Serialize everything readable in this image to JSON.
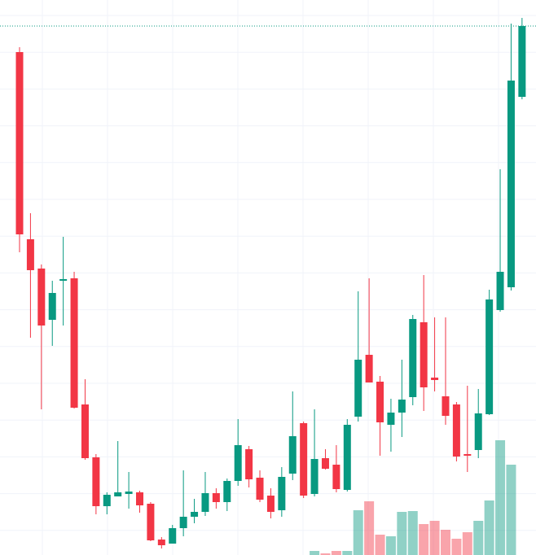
{
  "chart_data": {
    "type": "candlestick",
    "up_color": "#089981",
    "down_color": "#f23645",
    "ylim": [
      0,
      682
    ],
    "y2lim": [
      0,
      682
    ],
    "grid": true,
    "open": [
      618,
      388,
      352,
      289,
      337,
      340,
      185,
      120,
      60,
      72,
      75,
      77,
      63,
      19,
      14,
      33,
      47,
      53,
      76,
      65,
      91,
      130,
      95,
      73,
      55,
      100,
      162,
      75,
      119,
      111,
      80,
      170,
      246,
      213,
      160,
      175,
      194,
      286,
      218,
      195,
      185,
      124,
      129,
      173,
      301,
      329,
      563
    ],
    "high": [
      624,
      420,
      357,
      337,
      391,
      348,
      216,
      124,
      77,
      140,
      102,
      79,
      65,
      22,
      37,
      104,
      69,
      102,
      82,
      94,
      167,
      134,
      104,
      82,
      108,
      201,
      164,
      179,
      130,
      135,
      167,
      324,
      340,
      220,
      192,
      240,
      295,
      344,
      292,
      292,
      188,
      208,
      204,
      326,
      474,
      653,
      660
    ],
    "low": [
      372,
      267,
      179,
      257,
      282,
      180,
      117,
      50,
      50,
      72,
      57,
      52,
      17,
      8,
      14,
      23,
      39,
      48,
      57,
      54,
      85,
      83,
      65,
      45,
      47,
      92,
      70,
      72,
      105,
      77,
      78,
      164,
      212,
      122,
      127,
      145,
      184,
      177,
      201,
      160,
      115,
      102,
      119,
      172,
      299,
      325,
      560
    ],
    "close": [
      394,
      350,
      282,
      322,
      339,
      181,
      119,
      60,
      74,
      77,
      78,
      61,
      18,
      12,
      33,
      47,
      53,
      76,
      65,
      91,
      135,
      93,
      68,
      53,
      96,
      146,
      73,
      118,
      106,
      81,
      160,
      240,
      212,
      163,
      175,
      191,
      290,
      206,
      215,
      171,
      121,
      122,
      174,
      314,
      348,
      583,
      650
    ],
    "volume": [
      null,
      null,
      null,
      null,
      null,
      null,
      null,
      null,
      null,
      null,
      null,
      null,
      null,
      null,
      null,
      null,
      null,
      null,
      null,
      null,
      null,
      null,
      null,
      null,
      null,
      null,
      null,
      5,
      2,
      5,
      5,
      55,
      66,
      25,
      23,
      53,
      54,
      38,
      42,
      31,
      20,
      28,
      42,
      67,
      141,
      111,
      null
    ]
  }
}
